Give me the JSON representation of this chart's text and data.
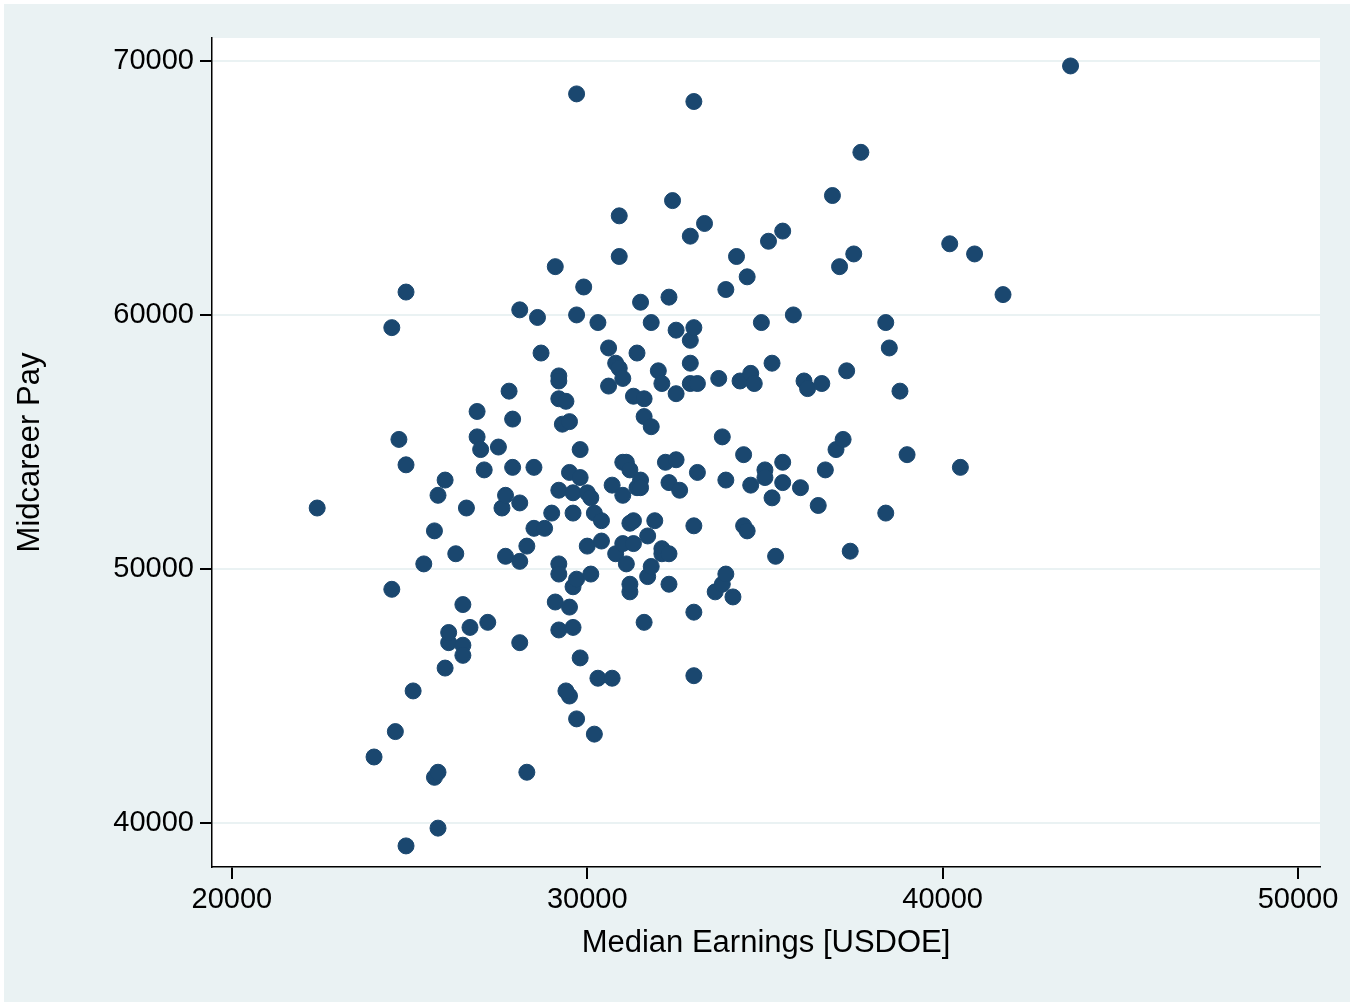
{
  "chart_data": {
    "type": "scatter",
    "xlabel": "Median Earnings [USDOE]",
    "ylabel": "Midcareer Pay",
    "x": [
      22400,
      24500,
      24900,
      24700,
      24900,
      24500,
      24000,
      24600,
      25100,
      25400,
      25700,
      25800,
      26000,
      26300,
      26100,
      26100,
      26500,
      26500,
      26500,
      26700,
      25700,
      25800,
      25800,
      24900,
      26000,
      26600,
      26900,
      26900,
      27000,
      27100,
      27200,
      27500,
      27600,
      27700,
      27800,
      27700,
      27900,
      27900,
      28100,
      28100,
      28100,
      28100,
      28300,
      28300,
      28500,
      28500,
      28600,
      28700,
      28800,
      29000,
      29100,
      29200,
      29200,
      29200,
      29100,
      29200,
      29200,
      29200,
      29200,
      29300,
      29400,
      29500,
      29400,
      29500,
      29500,
      29500,
      29600,
      29600,
      29600,
      29600,
      29700,
      29700,
      29700,
      29700,
      29800,
      29800,
      29800,
      29900,
      30000,
      30000,
      30100,
      30100,
      30200,
      30200,
      30300,
      30300,
      30400,
      30400,
      30600,
      30600,
      30700,
      30700,
      30800,
      30800,
      30900,
      30900,
      30900,
      31000,
      31000,
      31000,
      31000,
      31100,
      31100,
      31200,
      31200,
      31200,
      31200,
      31300,
      31300,
      31300,
      31400,
      31400,
      31500,
      31500,
      31500,
      31600,
      31600,
      31600,
      31700,
      31700,
      31800,
      31800,
      31800,
      31900,
      32000,
      32100,
      32100,
      32100,
      32200,
      32300,
      32300,
      32300,
      32300,
      32400,
      32500,
      32500,
      32500,
      32600,
      32900,
      32900,
      32900,
      33000,
      32900,
      33100,
      33000,
      33000,
      33000,
      33000,
      33100,
      33300,
      33600,
      33700,
      33800,
      33800,
      33900,
      33900,
      33900,
      34100,
      34200,
      34300,
      34400,
      34400,
      34500,
      34500,
      34600,
      34600,
      34700,
      35000,
      35000,
      34900,
      35100,
      35200,
      35200,
      35300,
      35500,
      35500,
      35500,
      35800,
      36000,
      36100,
      36200,
      36500,
      36600,
      36700,
      36900,
      37000,
      37100,
      37200,
      37300,
      37400,
      37500,
      37700,
      38400,
      38400,
      38500,
      38800,
      39000,
      40200,
      40500,
      40900,
      41700,
      43600
    ],
    "values": [
      52400,
      59500,
      60900,
      55100,
      54100,
      49200,
      42600,
      43600,
      45200,
      50200,
      51500,
      52900,
      53500,
      50600,
      47100,
      47500,
      48600,
      47000,
      46600,
      47700,
      41800,
      42000,
      39800,
      39100,
      46100,
      52400,
      55200,
      56200,
      54700,
      53900,
      47900,
      54800,
      52400,
      52900,
      57000,
      50500,
      55900,
      54000,
      47100,
      52600,
      60200,
      50300,
      50900,
      42000,
      54000,
      51600,
      59900,
      58500,
      51600,
      52200,
      61900,
      57600,
      56700,
      50200,
      48700,
      47600,
      53100,
      49800,
      57400,
      55700,
      56600,
      45000,
      45200,
      53800,
      55800,
      48500,
      53000,
      49300,
      52200,
      47700,
      68700,
      60000,
      49600,
      44100,
      46500,
      54700,
      53600,
      61100,
      53000,
      50900,
      49800,
      52800,
      43500,
      52200,
      59700,
      45700,
      51100,
      51900,
      58700,
      57200,
      53300,
      45700,
      50600,
      58100,
      63900,
      62300,
      57900,
      57500,
      54200,
      52900,
      51000,
      54200,
      50200,
      53900,
      51800,
      49100,
      49400,
      51000,
      56800,
      51900,
      53200,
      58500,
      53500,
      53200,
      60500,
      56700,
      47900,
      56000,
      51300,
      49700,
      50100,
      59700,
      55600,
      51900,
      57800,
      57300,
      50800,
      50600,
      54200,
      50600,
      60700,
      49400,
      53400,
      64500,
      54300,
      56900,
      59400,
      53100,
      63100,
      58100,
      59000,
      59500,
      57300,
      57300,
      68400,
      51700,
      48300,
      45800,
      53800,
      63600,
      49100,
      57500,
      49400,
      55200,
      49800,
      61000,
      53500,
      48900,
      62300,
      57400,
      54500,
      51700,
      61500,
      51500,
      57700,
      53300,
      57300,
      53900,
      53600,
      59700,
      62900,
      52800,
      58100,
      50500,
      63300,
      54200,
      53400,
      60000,
      53200,
      57400,
      57100,
      52500,
      57300,
      53900,
      64700,
      54700,
      61900,
      55100,
      57800,
      50700,
      62400,
      66400,
      52200,
      59700,
      58700,
      57000,
      54500,
      62800,
      54000,
      62400,
      60800,
      69800
    ],
    "color": "#1a476f",
    "marker": "circle",
    "xlim": [
      19440,
      50620
    ],
    "ylim": [
      38270,
      70900
    ],
    "xticks": [
      20000,
      30000,
      40000,
      50000
    ],
    "yticks": [
      40000,
      50000,
      60000,
      70000
    ],
    "grid": "y"
  }
}
